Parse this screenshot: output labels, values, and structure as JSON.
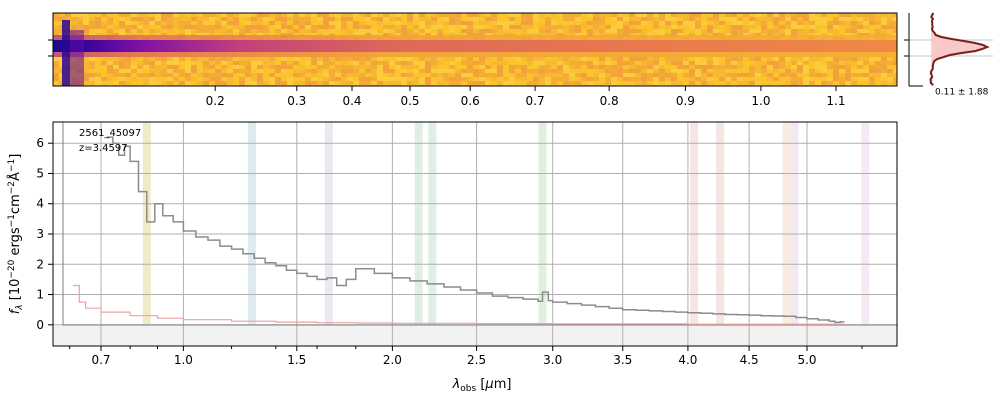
{
  "chart_data": [
    {
      "type": "heatmap",
      "panel": "2d-spectrum",
      "top_tick_labels": [
        {
          "label": "0.2",
          "um": 1.13
        },
        {
          "label": "0.3",
          "um": 1.5
        },
        {
          "label": "0.4",
          "um": 1.78
        },
        {
          "label": "0.5",
          "um": 2.1
        },
        {
          "label": "0.6",
          "um": 2.46
        },
        {
          "label": "0.7",
          "um": 2.88
        },
        {
          "label": "0.8",
          "um": 3.4
        },
        {
          "label": "0.9",
          "um": 3.98
        },
        {
          "label": "1.0",
          "um": 4.6
        },
        {
          "label": "1.1",
          "um": 5.26
        }
      ],
      "colormap": "plasma"
    },
    {
      "type": "line",
      "panel": "1d-profile",
      "annotation": "0.11 ± 1.88",
      "fill_color": "#f7c9c9",
      "line_color": "#7a1f1f"
    },
    {
      "type": "line",
      "panel": "1d-spectrum",
      "annotations": [
        "2561_45097",
        "z=3.4597"
      ],
      "xlabel": "λobs [μm]",
      "ylabel": "fλ [10⁻²⁰ ergs⁻¹cm⁻²Å⁻¹]",
      "xticks": [
        0.7,
        1.0,
        1.5,
        2.0,
        2.5,
        3.0,
        3.5,
        4.0,
        4.5,
        5.0
      ],
      "xtick_labels": [
        "0.7",
        "1.0",
        "1.5",
        "2.0",
        "2.5",
        "3.0",
        "3.5",
        "4.0",
        "4.5",
        "5.0"
      ],
      "minor_xticks": [
        0.6,
        0.8,
        0.9,
        1.2,
        1.4,
        1.6,
        1.8,
        5.5
      ],
      "yticks": [
        0,
        1,
        2,
        3,
        4,
        5,
        6
      ],
      "ytick_labels": [
        "0",
        "1",
        "2",
        "3",
        "4",
        "5",
        "6"
      ],
      "xlim": [
        0.55,
        5.55
      ],
      "ylim": [
        -0.7,
        6.7
      ],
      "grid": true,
      "x_scale": "power-law (wavelength^0.5-like)",
      "line_bands": [
        {
          "um": 0.86,
          "color": "#ece3b4"
        },
        {
          "um": 1.29,
          "color": "#d2e3ee"
        },
        {
          "um": 1.66,
          "color": "#e2e2ee"
        },
        {
          "um": 2.15,
          "color": "#d6e9dc"
        },
        {
          "um": 2.23,
          "color": "#d6e9dc"
        },
        {
          "um": 2.93,
          "color": "#d6ebd2"
        },
        {
          "um": 4.05,
          "color": "#f2dcda"
        },
        {
          "um": 4.26,
          "color": "#f2dcda"
        },
        {
          "um": 4.82,
          "color": "#fae5d6"
        },
        {
          "um": 4.89,
          "color": "#ece0ee"
        },
        {
          "um": 5.53,
          "color": "#f7dff0"
        }
      ],
      "series": [
        {
          "name": "flux",
          "color": "#8c8c8c",
          "x": [
            0.72,
            0.74,
            0.76,
            0.78,
            0.8,
            0.83,
            0.86,
            0.89,
            0.92,
            0.96,
            1.0,
            1.05,
            1.1,
            1.15,
            1.2,
            1.25,
            1.3,
            1.35,
            1.4,
            1.45,
            1.5,
            1.55,
            1.6,
            1.65,
            1.7,
            1.75,
            1.8,
            1.9,
            2.0,
            2.1,
            2.2,
            2.3,
            2.4,
            2.5,
            2.6,
            2.7,
            2.8,
            2.9,
            2.93,
            2.97,
            3.0,
            3.1,
            3.2,
            3.3,
            3.4,
            3.5,
            3.6,
            3.7,
            3.8,
            3.9,
            4.0,
            4.1,
            4.2,
            4.3,
            4.4,
            4.5,
            4.6,
            4.7,
            4.8,
            4.9,
            5.0,
            5.1,
            5.2,
            5.25,
            5.3
          ],
          "values": [
            6.2,
            6.0,
            5.6,
            5.9,
            5.4,
            4.4,
            3.4,
            4.0,
            3.6,
            3.4,
            3.1,
            2.9,
            2.8,
            2.6,
            2.5,
            2.35,
            2.2,
            2.05,
            1.95,
            1.8,
            1.7,
            1.6,
            1.5,
            1.55,
            1.3,
            1.5,
            1.85,
            1.7,
            1.55,
            1.45,
            1.35,
            1.25,
            1.15,
            1.05,
            0.95,
            0.9,
            0.85,
            0.78,
            1.08,
            0.8,
            0.75,
            0.7,
            0.65,
            0.6,
            0.55,
            0.5,
            0.48,
            0.46,
            0.44,
            0.42,
            0.4,
            0.38,
            0.36,
            0.34,
            0.33,
            0.32,
            0.3,
            0.29,
            0.28,
            0.24,
            0.2,
            0.16,
            0.12,
            0.08,
            0.1
          ]
        },
        {
          "name": "error",
          "color": "#e8a3a3",
          "x": [
            0.61,
            0.63,
            0.65,
            0.7,
            0.8,
            0.9,
            1.0,
            1.2,
            1.4,
            1.6,
            1.8,
            2.0,
            2.5,
            3.0,
            3.5,
            4.0,
            4.5,
            5.0,
            5.3
          ],
          "values": [
            1.3,
            0.75,
            0.55,
            0.42,
            0.3,
            0.22,
            0.17,
            0.12,
            0.09,
            0.07,
            0.06,
            0.05,
            0.04,
            0.03,
            0.03,
            0.02,
            0.02,
            0.02,
            0.02
          ]
        }
      ]
    }
  ]
}
